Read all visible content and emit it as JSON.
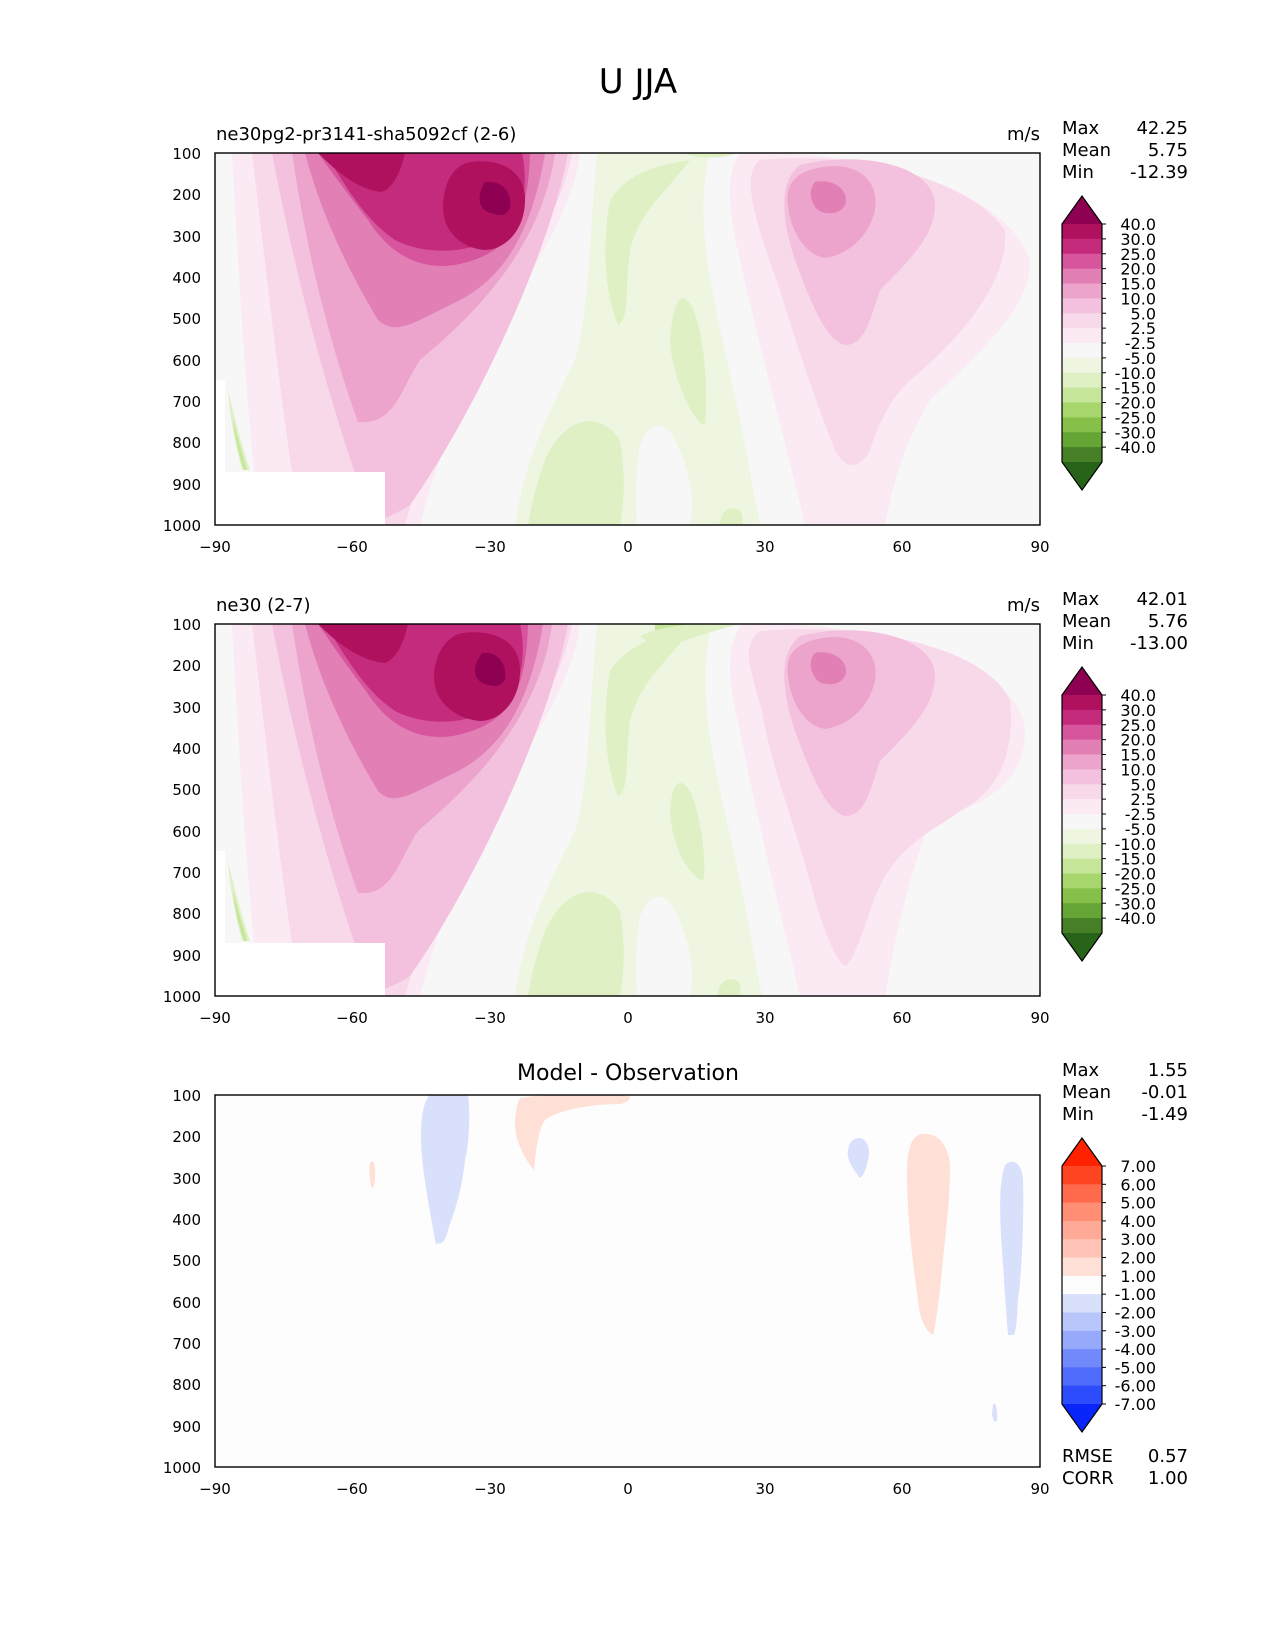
{
  "figure": {
    "title": "U JJA"
  },
  "chart_data": [
    {
      "type": "heatmap",
      "panel": "test",
      "title": "ne30pg2-pr3141-sha5092cf (2-6)",
      "units": "m/s",
      "x_ticks": [
        "−90",
        "−60",
        "−30",
        "0",
        "30",
        "60",
        "90"
      ],
      "y_ticks": [
        "100",
        "200",
        "300",
        "400",
        "500",
        "600",
        "700",
        "800",
        "900",
        "1000"
      ],
      "xlim": [
        -90,
        90
      ],
      "ylim": [
        1000,
        100
      ],
      "stats": [
        {
          "label": "Max",
          "value": "42.25"
        },
        {
          "label": "Mean",
          "value": "5.75"
        },
        {
          "label": "Min",
          "value": "-12.39"
        }
      ],
      "colorbar": {
        "levels": [
          "40.0",
          "30.0",
          "25.0",
          "20.0",
          "15.0",
          "10.0",
          "5.0",
          "2.5",
          "-2.5",
          "-5.0",
          "-10.0",
          "-15.0",
          "-20.0",
          "-25.0",
          "-30.0",
          "-40.0"
        ],
        "colors": [
          "#8e0152",
          "#b0115f",
          "#c52b7d",
          "#d6559d",
          "#e27fb5",
          "#eca3cc",
          "#f3c1dd",
          "#f8d9ea",
          "#fbeaf3",
          "#f7f7f7",
          "#eef6e1",
          "#dff0c5",
          "#c6e69a",
          "#a7d66c",
          "#86c049",
          "#64a535",
          "#477f26",
          "#276419"
        ]
      },
      "maxima": [
        {
          "lat": -30,
          "plev": 210,
          "value": 42.25
        },
        {
          "lat": 45,
          "plev": 200,
          "value": 22.0
        }
      ]
    },
    {
      "type": "heatmap",
      "panel": "reference",
      "title": "ne30 (2-7)",
      "units": "m/s",
      "x_ticks": [
        "−90",
        "−60",
        "−30",
        "0",
        "30",
        "60",
        "90"
      ],
      "y_ticks": [
        "100",
        "200",
        "300",
        "400",
        "500",
        "600",
        "700",
        "800",
        "900",
        "1000"
      ],
      "xlim": [
        -90,
        90
      ],
      "ylim": [
        1000,
        100
      ],
      "stats": [
        {
          "label": "Max",
          "value": "42.01"
        },
        {
          "label": "Mean",
          "value": "5.76"
        },
        {
          "label": "Min",
          "value": "-13.00"
        }
      ],
      "colorbar": {
        "levels": [
          "40.0",
          "30.0",
          "25.0",
          "20.0",
          "15.0",
          "10.0",
          "5.0",
          "2.5",
          "-2.5",
          "-5.0",
          "-10.0",
          "-15.0",
          "-20.0",
          "-25.0",
          "-30.0",
          "-40.0"
        ],
        "colors": [
          "#8e0152",
          "#b0115f",
          "#c52b7d",
          "#d6559d",
          "#e27fb5",
          "#eca3cc",
          "#f3c1dd",
          "#f8d9ea",
          "#fbeaf3",
          "#f7f7f7",
          "#eef6e1",
          "#dff0c5",
          "#c6e69a",
          "#a7d66c",
          "#86c049",
          "#64a535",
          "#477f26",
          "#276419"
        ]
      },
      "maxima": [
        {
          "lat": -30,
          "plev": 210,
          "value": 42.01
        },
        {
          "lat": 45,
          "plev": 200,
          "value": 22.0
        }
      ]
    },
    {
      "type": "heatmap",
      "panel": "difference",
      "title": "Model - Observation",
      "units": "",
      "x_ticks": [
        "−90",
        "−60",
        "−30",
        "0",
        "30",
        "60",
        "90"
      ],
      "y_ticks": [
        "100",
        "200",
        "300",
        "400",
        "500",
        "600",
        "700",
        "800",
        "900",
        "1000"
      ],
      "xlim": [
        -90,
        90
      ],
      "ylim": [
        1000,
        100
      ],
      "stats": [
        {
          "label": "Max",
          "value": "1.55"
        },
        {
          "label": "Mean",
          "value": "-0.01"
        },
        {
          "label": "Min",
          "value": "-1.49"
        }
      ],
      "extra_stats": [
        {
          "label": "RMSE",
          "value": "0.57"
        },
        {
          "label": "CORR",
          "value": "1.00"
        }
      ],
      "colorbar": {
        "levels": [
          "7.00",
          "6.00",
          "5.00",
          "4.00",
          "3.00",
          "2.00",
          "1.00",
          "-1.00",
          "-2.00",
          "-3.00",
          "-4.00",
          "-5.00",
          "-6.00",
          "-7.00"
        ],
        "colors": [
          "#ff2200",
          "#ff4422",
          "#ff6a4c",
          "#ff8e74",
          "#ffaa96",
          "#ffc4b5",
          "#ffe0d6",
          "#fdfdfd",
          "#d9e0fb",
          "#b9c6fb",
          "#97a9fb",
          "#7189fb",
          "#4f6bfb",
          "#2d4cfb",
          "#0a25fa"
        ]
      },
      "anomalies": [
        {
          "lat": -41,
          "plev_top": 100,
          "plev_bottom": 470,
          "sign": "negative"
        },
        {
          "lat": -14,
          "plev_top": 100,
          "plev_bottom": 270,
          "sign": "positive"
        },
        {
          "lat": -56,
          "plev_top": 260,
          "plev_bottom": 320,
          "sign": "positive"
        },
        {
          "lat": 50,
          "plev_top": 200,
          "plev_bottom": 290,
          "sign": "negative"
        },
        {
          "lat": 65,
          "plev_top": 180,
          "plev_bottom": 670,
          "sign": "positive"
        },
        {
          "lat": 84,
          "plev_top": 250,
          "plev_bottom": 670,
          "sign": "negative"
        },
        {
          "lat": 80,
          "plev_top": 850,
          "plev_bottom": 890,
          "sign": "negative"
        }
      ]
    }
  ]
}
